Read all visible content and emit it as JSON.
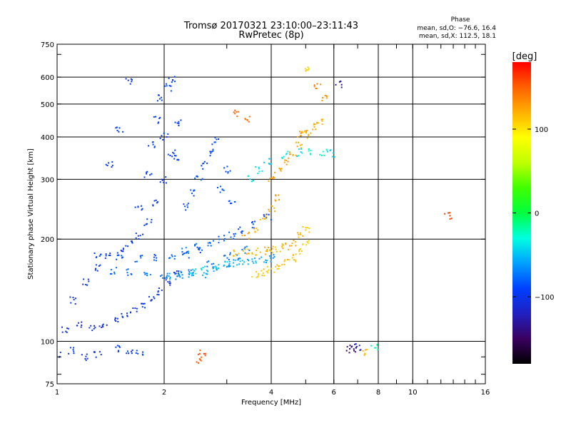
{
  "header": {
    "title": "Tromsø 20170321 23:10:00–23:11:43",
    "subtitle": "RwPretec (8p)",
    "phase_label": "Phase",
    "stats_o": "mean, sd,O: −76.6, 16.4",
    "stats_x": "mean, sd,X: 112.5, 18.1"
  },
  "colorbar": {
    "unit": "[deg]",
    "ticks": [
      {
        "label": "100",
        "value": 100
      },
      {
        "label": "0",
        "value": 0
      },
      {
        "label": "−100",
        "value": -100
      }
    ],
    "range": [
      -180,
      180
    ],
    "colors": [
      "#000000",
      "#3a0060",
      "#2020c0",
      "#0040ff",
      "#00a0ff",
      "#00ffe0",
      "#00ff40",
      "#40ff00",
      "#c0ff00",
      "#ffff00",
      "#ffb000",
      "#ff6000",
      "#ff0000"
    ]
  },
  "chart_data": {
    "type": "scatter",
    "title": "Tromsø 20170321 23:10:00–23:11:43",
    "subtitle": "RwPretec (8p)",
    "xlabel": "Frequency [MHz]",
    "ylabel": "Stationary phase Virtual Height [km]",
    "xscale": "log",
    "yscale": "log",
    "xlim": [
      1,
      16
    ],
    "ylim": [
      75,
      750
    ],
    "xticks": [
      {
        "label": "1",
        "value": 1
      },
      {
        "label": "2",
        "value": 2
      },
      {
        "label": "4",
        "value": 4
      },
      {
        "label": "6",
        "value": 6
      },
      {
        "label": "8",
        "value": 8
      },
      {
        "label": "10",
        "value": 10
      },
      {
        "label": "16",
        "value": 16
      }
    ],
    "yticks": [
      {
        "label": "75",
        "value": 75
      },
      {
        "label": "100",
        "value": 100
      },
      {
        "label": "200",
        "value": 200
      },
      {
        "label": "300",
        "value": 300
      },
      {
        "label": "400",
        "value": 400
      },
      {
        "label": "500",
        "value": 500
      },
      {
        "label": "600",
        "value": 600
      },
      {
        "label": "750",
        "value": 750
      }
    ],
    "grid_x": [
      2,
      4,
      6,
      8,
      10
    ],
    "grid_y": [
      100,
      200,
      300,
      400,
      500,
      600
    ],
    "color_by": "phase_deg",
    "series": [
      {
        "x": [
          1.05,
          1.15,
          1.25,
          1.35,
          1.45,
          1.55,
          1.65,
          1.75,
          1.85,
          1.95,
          2.05,
          2.15
        ],
        "y": [
          108,
          112,
          110,
          112,
          116,
          118,
          123,
          128,
          135,
          140,
          150,
          160
        ],
        "phase": [
          -105,
          -108,
          -104,
          -106,
          -103,
          -100,
          -102,
          -98,
          -100,
          -104,
          -103,
          -105
        ]
      },
      {
        "x": [
          1.1,
          1.2,
          1.3,
          1.4,
          1.5,
          1.6,
          1.7,
          1.8,
          1.9,
          2.0,
          2.1,
          2.2
        ],
        "y": [
          132,
          150,
          165,
          178,
          185,
          195,
          205,
          225,
          255,
          300,
          360,
          440
        ],
        "phase": [
          -103,
          -100,
          -98,
          -101,
          -99,
          -97,
          -100,
          -96,
          -95,
          -98,
          -94,
          -97
        ]
      },
      {
        "x": [
          1.4,
          1.5,
          1.6,
          1.7,
          1.8,
          1.85,
          1.9,
          1.95,
          2.0,
          2.05,
          2.1,
          2.15
        ],
        "y": [
          330,
          420,
          580,
          250,
          310,
          380,
          450,
          520,
          400,
          560,
          590,
          350
        ],
        "phase": [
          -96,
          -95,
          -98,
          -92,
          -94,
          -90,
          -95,
          -93,
          -97,
          -91,
          -94,
          -96
        ]
      },
      {
        "x": [
          1.3,
          1.5,
          1.7,
          1.9,
          2.1,
          2.3,
          2.5
        ],
        "y": [
          178,
          178,
          176,
          177,
          178,
          180,
          186
        ],
        "phase": [
          -92,
          -90,
          -86,
          -84,
          -80,
          -82,
          -88
        ]
      },
      {
        "x": [
          1.45,
          1.6,
          1.8,
          2.0,
          2.2,
          2.4,
          2.7,
          3.0
        ],
        "y": [
          162,
          160,
          158,
          156,
          157,
          160,
          168,
          178
        ],
        "phase": [
          -76,
          -78,
          -74,
          -72,
          -70,
          -74,
          -76,
          -80
        ]
      },
      {
        "x": [
          2.05,
          2.2,
          2.4,
          2.6,
          2.8,
          3.0,
          3.2,
          3.4
        ],
        "y": [
          155,
          156,
          157,
          158,
          162,
          168,
          176,
          186
        ],
        "phase": [
          -62,
          -64,
          -60,
          -58,
          -60,
          -62,
          -66,
          -70
        ]
      },
      {
        "x": [
          2.4,
          2.6,
          2.8,
          3.0,
          3.2,
          3.4,
          3.6,
          3.8,
          4.0
        ],
        "y": [
          160,
          163,
          165,
          168,
          170,
          172,
          174,
          175,
          176
        ],
        "phase": [
          -40,
          -44,
          -46,
          -48,
          -50,
          -52,
          -55,
          -58,
          -62
        ]
      },
      {
        "x": [
          2.3,
          2.5,
          2.7,
          2.9,
          3.1,
          3.3,
          3.6,
          3.9
        ],
        "y": [
          185,
          190,
          196,
          200,
          205,
          212,
          220,
          232
        ],
        "phase": [
          -70,
          -74,
          -76,
          -80,
          -84,
          -86,
          -90,
          -94
        ]
      },
      {
        "x": [
          2.3,
          2.4,
          2.5,
          2.6,
          2.7,
          2.8,
          2.9,
          3.0,
          3.1
        ],
        "y": [
          250,
          275,
          300,
          330,
          360,
          390,
          280,
          320,
          260
        ],
        "phase": [
          -88,
          -86,
          -84,
          -90,
          -92,
          -88,
          -82,
          -86,
          -90
        ]
      },
      {
        "x": [
          3.2,
          3.4,
          3.6,
          3.8,
          4.0,
          4.2,
          4.4,
          4.6,
          4.8,
          5.0
        ],
        "y": [
          182,
          183,
          184,
          185,
          186,
          187,
          190,
          196,
          204,
          214
        ],
        "phase": [
          118,
          120,
          116,
          122,
          118,
          115,
          120,
          124,
          118,
          114
        ]
      },
      {
        "x": [
          3.6,
          3.8,
          4.0,
          4.2,
          4.4,
          4.6,
          4.8,
          5.0
        ],
        "y": [
          158,
          160,
          162,
          166,
          170,
          176,
          184,
          195
        ],
        "phase": [
          110,
          112,
          108,
          114,
          116,
          112,
          110,
          106
        ]
      },
      {
        "x": [
          3.4,
          3.6,
          3.8,
          4.0,
          4.2
        ],
        "y": [
          205,
          215,
          230,
          245,
          265
        ],
        "phase": [
          124,
          120,
          118,
          122,
          126
        ]
      },
      {
        "x": [
          4.0,
          4.2,
          4.4,
          4.6,
          4.8,
          5.0
        ],
        "y": [
          300,
          320,
          340,
          360,
          380,
          405
        ],
        "phase": [
          128,
          126,
          130,
          124,
          120,
          116
        ]
      },
      {
        "x": [
          4.8,
          5.1,
          5.3,
          5.5
        ],
        "y": [
          405,
          420,
          430,
          440
        ],
        "phase": [
          128,
          124,
          120,
          118
        ]
      },
      {
        "x": [
          4.4,
          4.8,
          5.2,
          5.6,
          5.9
        ],
        "y": [
          355,
          360,
          362,
          360,
          358
        ],
        "phase": [
          -35,
          -40,
          -30,
          -28,
          -45
        ]
      },
      {
        "x": [
          3.5,
          3.7,
          3.9
        ],
        "y": [
          300,
          320,
          340
        ],
        "phase": [
          -40,
          -35,
          -45
        ]
      },
      {
        "x": [
          1.0,
          1.1,
          1.2,
          1.3,
          1.5,
          1.6,
          1.7
        ],
        "y": [
          92,
          94,
          90,
          91,
          95,
          92,
          93
        ],
        "phase": [
          -100,
          -98,
          -104,
          -102,
          -96,
          -100,
          -90
        ]
      },
      {
        "x": [
          2.5,
          2.55
        ],
        "y": [
          88,
          92
        ],
        "phase": [
          150,
          155
        ]
      },
      {
        "x": [
          6.6,
          6.8,
          7.0,
          7.4,
          7.8
        ],
        "y": [
          95,
          94,
          96,
          93,
          96
        ],
        "phase": [
          -150,
          -140,
          -120,
          120,
          -20
        ]
      },
      {
        "x": [
          5.0,
          5.4,
          5.6,
          6.2,
          3.2,
          3.4,
          12.6
        ],
        "y": [
          630,
          560,
          520,
          570,
          470,
          450,
          235
        ],
        "phase": [
          110,
          140,
          130,
          -130,
          150,
          145,
          160
        ]
      }
    ]
  }
}
